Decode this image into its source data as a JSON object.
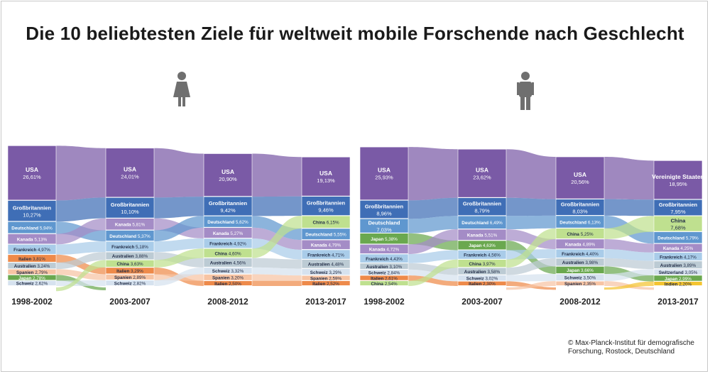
{
  "title": "Die 10 beliebtesten Ziele für weltweit mobile Forschende nach Geschlecht",
  "credit": "© Max-Planck-Institut für demografische Forschung, Rostock, Deutschland",
  "icons": {
    "female": "female-person-icon",
    "male": "male-person-icon"
  },
  "colors": {
    "USA": "#7a5aa6",
    "Vereinigte Staaten": "#7a5aa6",
    "Großbritannien": "#3f6eb6",
    "Deutschland": "#5f97cf",
    "Kanada": "#a48cc6",
    "Frankreich": "#a9cce9",
    "Italien": "#ee8a4a",
    "Australien": "#bccbd4",
    "Spanien": "#f7c4a4",
    "Japan": "#6aa84f",
    "Schweiz": "#d6e2ef",
    "China": "#bfe08f",
    "Switzerland": "#d6e2ef",
    "Indien": "#f4c430"
  },
  "chart_data": [
    {
      "type": "sankey",
      "group": "female",
      "periods": [
        "1998-2002",
        "2003-2007",
        "2008-2012",
        "2013-2017"
      ],
      "columns": [
        [
          {
            "name": "USA",
            "value": "26,61%",
            "v": 26.61
          },
          {
            "name": "Großbritannien",
            "value": "10,27%",
            "v": 10.27
          },
          {
            "name": "Deutschland",
            "value": "5,94%",
            "v": 5.94
          },
          {
            "name": "Kanada",
            "value": "5,13%",
            "v": 5.13
          },
          {
            "name": "Frankreich",
            "value": "4,97%",
            "v": 4.97
          },
          {
            "name": "Italien",
            "value": "3,81%",
            "v": 3.81
          },
          {
            "name": "Australien",
            "value": "3,24%",
            "v": 3.24
          },
          {
            "name": "Spanien",
            "value": "2,79%",
            "v": 2.79
          },
          {
            "name": "Japan",
            "value": "2,78%",
            "v": 2.78
          },
          {
            "name": "Schweiz",
            "value": "2,62%",
            "v": 2.62
          }
        ],
        [
          {
            "name": "USA",
            "value": "24,01%",
            "v": 24.01
          },
          {
            "name": "Großbritannien",
            "value": "10,10%",
            "v": 10.1
          },
          {
            "name": "Kanada",
            "value": "5,81%",
            "v": 5.81
          },
          {
            "name": "Deutschland",
            "value": "5,37%",
            "v": 5.37
          },
          {
            "name": "Frankreich",
            "value": "5,18%",
            "v": 5.18
          },
          {
            "name": "Australien",
            "value": "3,88%",
            "v": 3.88
          },
          {
            "name": "China",
            "value": "3,63%",
            "v": 3.63
          },
          {
            "name": "Italien",
            "value": "3,29%",
            "v": 3.29
          },
          {
            "name": "Spanien",
            "value": "2,89%",
            "v": 2.89
          },
          {
            "name": "Schweiz",
            "value": "2,82%",
            "v": 2.82
          }
        ],
        [
          {
            "name": "USA",
            "value": "20,90%",
            "v": 20.9
          },
          {
            "name": "Großbritannien",
            "value": "9,42%",
            "v": 9.42
          },
          {
            "name": "Deutschland",
            "value": "5,62%",
            "v": 5.62
          },
          {
            "name": "Kanada",
            "value": "5,27%",
            "v": 5.27
          },
          {
            "name": "Frankreich",
            "value": "4,92%",
            "v": 4.92
          },
          {
            "name": "China",
            "value": "4,60%",
            "v": 4.6
          },
          {
            "name": "Australien",
            "value": "4,56%",
            "v": 4.56
          },
          {
            "name": "Schweiz",
            "value": "3,32%",
            "v": 3.32
          },
          {
            "name": "Spanien",
            "value": "3,20%",
            "v": 3.2
          },
          {
            "name": "Italien",
            "value": "2,50%",
            "v": 2.5
          }
        ],
        [
          {
            "name": "USA",
            "value": "19,13%",
            "v": 19.13
          },
          {
            "name": "Großbritannien",
            "value": "9,46%",
            "v": 9.46
          },
          {
            "name": "China",
            "value": "6,15%",
            "v": 6.15
          },
          {
            "name": "Deutschland",
            "value": "5,55%",
            "v": 5.55
          },
          {
            "name": "Kanada",
            "value": "4,79%",
            "v": 4.79
          },
          {
            "name": "Frankreich",
            "value": "4,71%",
            "v": 4.71
          },
          {
            "name": "Australien",
            "value": "4,48%",
            "v": 4.48
          },
          {
            "name": "Schweiz",
            "value": "3,29%",
            "v": 3.29
          },
          {
            "name": "Spanien",
            "value": "2,59%",
            "v": 2.59
          },
          {
            "name": "Italien",
            "value": "2,52%",
            "v": 2.52
          }
        ]
      ]
    },
    {
      "type": "sankey",
      "group": "male",
      "periods": [
        "1998-2002",
        "2003-2007",
        "2008-2012",
        "2013-2017"
      ],
      "columns": [
        [
          {
            "name": "USA",
            "value": "25,93%",
            "v": 25.93
          },
          {
            "name": "Großbritannien",
            "value": "8,96%",
            "v": 8.96
          },
          {
            "name": "Deutschland",
            "value": "7,03%",
            "v": 7.03
          },
          {
            "name": "Japan",
            "value": "5,38%",
            "v": 5.38
          },
          {
            "name": "Kanada",
            "value": "4,72%",
            "v": 4.72
          },
          {
            "name": "Frankreich",
            "value": "4,43%",
            "v": 4.43
          },
          {
            "name": "Australien",
            "value": "3,10%",
            "v": 3.1
          },
          {
            "name": "Schweiz",
            "value": "2,84%",
            "v": 2.84
          },
          {
            "name": "Italien",
            "value": "2,61%",
            "v": 2.61
          },
          {
            "name": "China",
            "value": "2,54%",
            "v": 2.54
          }
        ],
        [
          {
            "name": "USA",
            "value": "23,62%",
            "v": 23.62
          },
          {
            "name": "Großbritannien",
            "value": "8,79%",
            "v": 8.79
          },
          {
            "name": "Deutschland",
            "value": "6,49%",
            "v": 6.49
          },
          {
            "name": "Kanada",
            "value": "5,51%",
            "v": 5.51
          },
          {
            "name": "Japan",
            "value": "4,63%",
            "v": 4.63
          },
          {
            "name": "Frankreich",
            "value": "4,56%",
            "v": 4.56
          },
          {
            "name": "China",
            "value": "3,97%",
            "v": 3.97
          },
          {
            "name": "Australien",
            "value": "3,58%",
            "v": 3.58
          },
          {
            "name": "Schweiz",
            "value": "3,02%",
            "v": 3.02
          },
          {
            "name": "Italien",
            "value": "2,30%",
            "v": 2.3
          }
        ],
        [
          {
            "name": "USA",
            "value": "20,56%",
            "v": 20.56
          },
          {
            "name": "Großbritannien",
            "value": "8,03%",
            "v": 8.03
          },
          {
            "name": "Deutschland",
            "value": "6,13%",
            "v": 6.13
          },
          {
            "name": "China",
            "value": "5,25%",
            "v": 5.25
          },
          {
            "name": "Kanada",
            "value": "4,89%",
            "v": 4.89
          },
          {
            "name": "Frankreich",
            "value": "4,40%",
            "v": 4.4
          },
          {
            "name": "Australien",
            "value": "3,98%",
            "v": 3.98
          },
          {
            "name": "Japan",
            "value": "3,66%",
            "v": 3.66
          },
          {
            "name": "Schweiz",
            "value": "3,50%",
            "v": 3.5
          },
          {
            "name": "Spanien",
            "value": "2,35%",
            "v": 2.35
          }
        ],
        [
          {
            "name": "Vereinigte Staaten",
            "value": "18,95%",
            "v": 18.95
          },
          {
            "name": "Großbritannien",
            "value": "7,95%",
            "v": 7.95
          },
          {
            "name": "China",
            "value": "7,68%",
            "v": 7.68
          },
          {
            "name": "Deutschland",
            "value": "5,79%",
            "v": 5.79
          },
          {
            "name": "Kanada",
            "value": "4,25%",
            "v": 4.25
          },
          {
            "name": "Frankreich",
            "value": "4,17%",
            "v": 4.17
          },
          {
            "name": "Australien",
            "value": "3,89%",
            "v": 3.89
          },
          {
            "name": "Switzerland",
            "value": "3,05%",
            "v": 3.05
          },
          {
            "name": "Japan",
            "value": "2,99%",
            "v": 2.99
          },
          {
            "name": "Indien",
            "value": "2,20%",
            "v": 2.2
          }
        ]
      ]
    }
  ]
}
